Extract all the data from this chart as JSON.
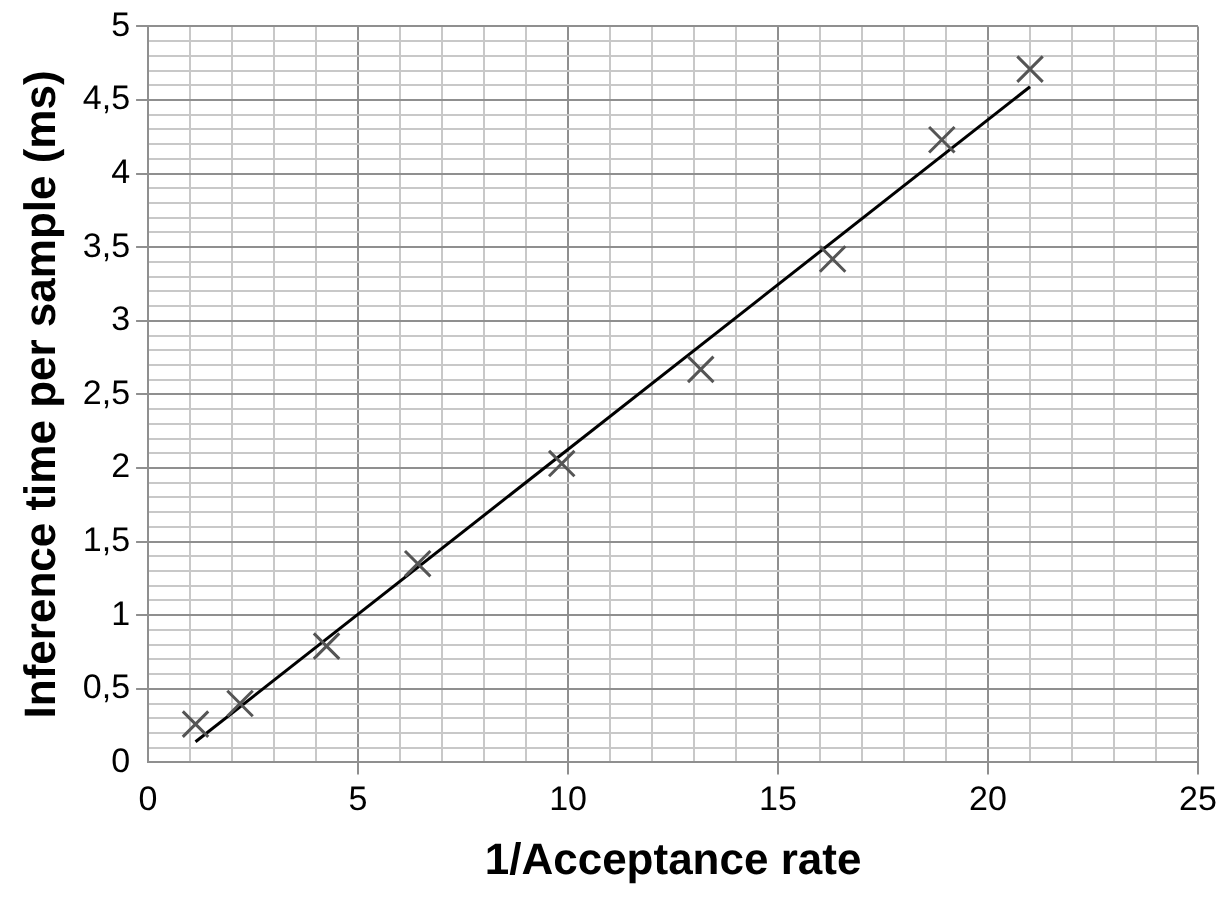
{
  "chart_data": {
    "type": "scatter",
    "xlabel": "1/Acceptance rate",
    "ylabel": "Inference time per sample (ms)",
    "xlim": [
      0,
      25
    ],
    "ylim": [
      0,
      5
    ],
    "grid": true,
    "legend": false,
    "xticks": [
      0,
      {
        "value": 1,
        "label": null
      },
      {
        "value": 2,
        "label": null
      },
      {
        "value": 3,
        "label": null
      },
      {
        "value": 4,
        "label": null
      },
      5,
      {
        "value": 6,
        "label": null
      },
      {
        "value": 7,
        "label": null
      },
      {
        "value": 8,
        "label": null
      },
      {
        "value": 9,
        "label": null
      },
      10,
      {
        "value": 11,
        "label": null
      },
      {
        "value": 12,
        "label": null
      },
      {
        "value": 13,
        "label": null
      },
      {
        "value": 14,
        "label": null
      },
      15,
      {
        "value": 16,
        "label": null
      },
      {
        "value": 17,
        "label": null
      },
      {
        "value": 18,
        "label": null
      },
      {
        "value": 19,
        "label": null
      },
      20,
      {
        "value": 21,
        "label": null
      },
      {
        "value": 22,
        "label": null
      },
      {
        "value": 23,
        "label": null
      },
      {
        "value": 24,
        "label": null
      },
      25
    ],
    "yticks": [
      0,
      {
        "value": 0.1,
        "label": null
      },
      {
        "value": 0.2,
        "label": null
      },
      {
        "value": 0.3,
        "label": null
      },
      {
        "value": 0.4,
        "label": null
      },
      {
        "value": 0.5,
        "label": "0,5"
      },
      {
        "value": 0.6,
        "label": null
      },
      {
        "value": 0.7,
        "label": null
      },
      {
        "value": 0.8,
        "label": null
      },
      {
        "value": 0.9,
        "label": null
      },
      1,
      {
        "value": 1.1,
        "label": null
      },
      {
        "value": 1.2,
        "label": null
      },
      {
        "value": 1.3,
        "label": null
      },
      {
        "value": 1.4,
        "label": null
      },
      {
        "value": 1.5,
        "label": "1,5"
      },
      {
        "value": 1.6,
        "label": null
      },
      {
        "value": 1.7,
        "label": null
      },
      {
        "value": 1.8,
        "label": null
      },
      {
        "value": 1.9,
        "label": null
      },
      2,
      {
        "value": 2.1,
        "label": null
      },
      {
        "value": 2.2,
        "label": null
      },
      {
        "value": 2.3,
        "label": null
      },
      {
        "value": 2.4,
        "label": null
      },
      {
        "value": 2.5,
        "label": "2,5"
      },
      {
        "value": 2.6,
        "label": null
      },
      {
        "value": 2.7,
        "label": null
      },
      {
        "value": 2.8,
        "label": null
      },
      {
        "value": 2.9,
        "label": null
      },
      3,
      {
        "value": 3.1,
        "label": null
      },
      {
        "value": 3.2,
        "label": null
      },
      {
        "value": 3.3,
        "label": null
      },
      {
        "value": 3.4,
        "label": null
      },
      {
        "value": 3.5,
        "label": "3,5"
      },
      {
        "value": 3.6,
        "label": null
      },
      {
        "value": 3.7,
        "label": null
      },
      {
        "value": 3.8,
        "label": null
      },
      {
        "value": 3.9,
        "label": null
      },
      4,
      {
        "value": 4.1,
        "label": null
      },
      {
        "value": 4.2,
        "label": null
      },
      {
        "value": 4.3,
        "label": null
      },
      {
        "value": 4.4,
        "label": null
      },
      {
        "value": 4.5,
        "label": "4,5"
      },
      {
        "value": 4.6,
        "label": null
      },
      {
        "value": 4.7,
        "label": null
      },
      {
        "value": 4.8,
        "label": null
      },
      {
        "value": 4.9,
        "label": null
      },
      5
    ],
    "series": [
      {
        "type": "scatter",
        "marker": "cross",
        "color": "#555555",
        "x": [
          1.13,
          2.19,
          4.25,
          6.42,
          9.85,
          13.16,
          16.3,
          18.9,
          21.0
        ],
        "values": [
          0.26,
          0.4,
          0.79,
          1.35,
          2.03,
          2.67,
          3.42,
          4.23,
          4.71
        ]
      },
      {
        "type": "line",
        "marker": "none",
        "line_style": "solid",
        "color": "#000000",
        "x": [
          1.13,
          21.0
        ],
        "values": [
          0.14,
          4.59
        ]
      }
    ]
  }
}
